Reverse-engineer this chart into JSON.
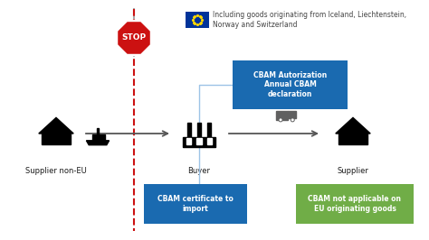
{
  "bg_color": "#ffffff",
  "text_color": "#1a1a1a",
  "blue_box_color": "#1a6ab0",
  "green_box_color": "#70ad47",
  "eu_flag_blue": "#003399",
  "stop_red": "#cc1111",
  "dashed_line_color": "#cc1111",
  "arrow_color": "#555555",
  "light_blue_line": "#9dc3e6",
  "supplier_noneu_label": "Supplier non-EU",
  "buyer_label": "Buyer",
  "supplier_label": "Supplier",
  "cbam_auth_text": "CBAM Autorization\nAnnual CBAM\ndeclaration",
  "cbam_cert_text": "CBAM certificate to\nimport",
  "cbam_na_text": "CBAM not applicable on\nEU originating goods",
  "eu_text": "Including goods originating from Iceland, Liechtenstein,\nNorway and Switzerland",
  "stop_text": "STOP",
  "figsize": [
    4.74,
    2.66
  ],
  "dpi": 100
}
